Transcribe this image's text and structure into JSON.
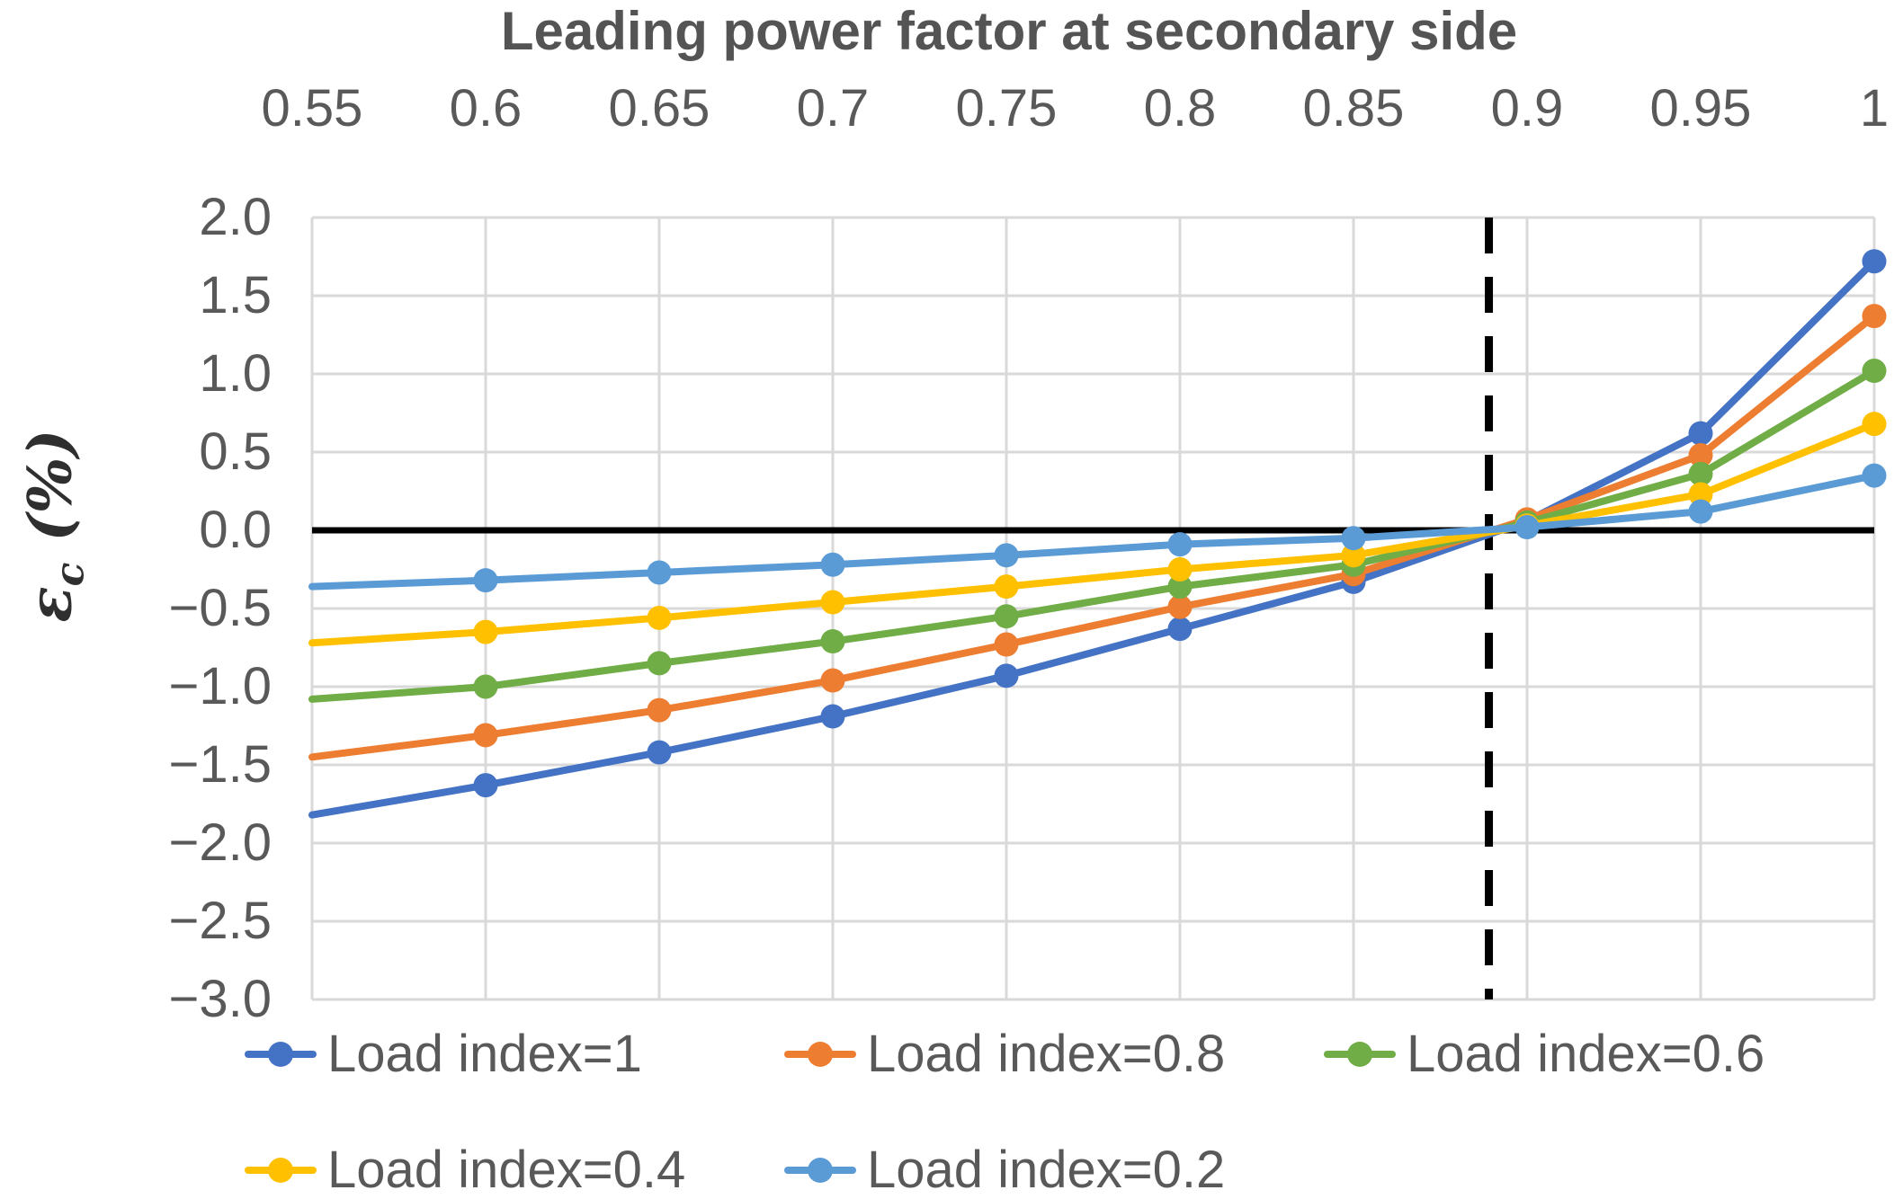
{
  "chart_data": {
    "type": "line",
    "title": "Leading power factor at secondary side",
    "ylabel": "εc (%)",
    "ylabel_symbol": "ε",
    "ylabel_sub": "c",
    "ylabel_unit": " (%)",
    "x": [
      0.55,
      0.6,
      0.65,
      0.7,
      0.75,
      0.8,
      0.85,
      0.9,
      0.95,
      1.0
    ],
    "x_tick_labels": [
      "0.55",
      "0.6",
      "0.65",
      "0.7",
      "0.75",
      "0.8",
      "0.85",
      "0.9",
      "0.95",
      "1"
    ],
    "y_tick_values": [
      2.0,
      1.5,
      1.0,
      0.5,
      0.0,
      -0.5,
      -1.0,
      -1.5,
      -2.0,
      -2.5,
      -3.0
    ],
    "y_tick_labels": [
      "2.0",
      "1.5",
      "1.0",
      "0.5",
      "0.0",
      "−0.5",
      "−1.0",
      "−1.5",
      "−2.0",
      "−2.5",
      "−3.0"
    ],
    "xlim": [
      0.55,
      1.0
    ],
    "ylim": [
      -3.0,
      2.0
    ],
    "grid": true,
    "legend_position": "bottom",
    "legend_rows": [
      [
        0,
        1,
        2
      ],
      [
        3,
        4
      ]
    ],
    "series": [
      {
        "name": "Load index=1",
        "color": "#4472C4",
        "values": [
          -1.82,
          -1.63,
          -1.42,
          -1.19,
          -0.93,
          -0.63,
          -0.33,
          0.06,
          0.62,
          1.72
        ]
      },
      {
        "name": "Load index=0.8",
        "color": "#ED7D31",
        "values": [
          -1.45,
          -1.31,
          -1.15,
          -0.96,
          -0.73,
          -0.49,
          -0.28,
          0.07,
          0.48,
          1.37
        ]
      },
      {
        "name": "Load index=0.6",
        "color": "#70AD47",
        "values": [
          -1.08,
          -1.0,
          -0.85,
          -0.71,
          -0.55,
          -0.36,
          -0.22,
          0.05,
          0.36,
          1.02
        ]
      },
      {
        "name": "Load index=0.4",
        "color": "#FFC000",
        "values": [
          -0.72,
          -0.65,
          -0.56,
          -0.46,
          -0.36,
          -0.25,
          -0.16,
          0.03,
          0.23,
          0.68
        ]
      },
      {
        "name": "Load index=0.2",
        "color": "#5B9BD5",
        "values": [
          -0.36,
          -0.32,
          -0.27,
          -0.22,
          -0.16,
          -0.09,
          -0.05,
          0.02,
          0.12,
          0.35
        ]
      }
    ],
    "annotations": {
      "zero_line_y": 0.0,
      "dashed_vline_x": 0.889
    },
    "colors": {
      "gridline": "#D9D9D9",
      "axis_text": "#595959",
      "title_text": "#545454",
      "reference_lines": "#000000"
    }
  }
}
